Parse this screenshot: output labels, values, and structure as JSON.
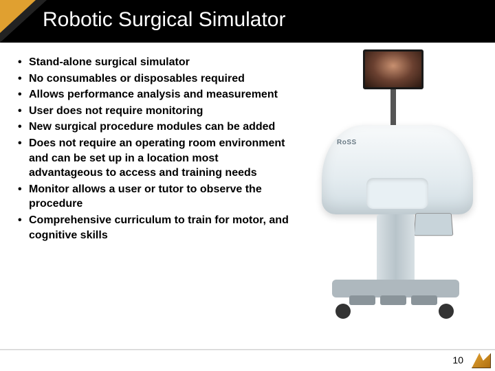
{
  "header": {
    "title": "Robotic Surgical Simulator",
    "accent_color": "#e0a030",
    "bg_color": "#000000",
    "text_color": "#ffffff"
  },
  "bullets": [
    "Stand-alone surgical simulator",
    "No consumables or disposables required",
    "Allows performance analysis and measurement",
    "User does not require monitoring",
    "New surgical procedure modules can be added",
    "Does not require an operating room environment and can be set up in a location most advantageous to access and training needs",
    "Monitor allows a user or tutor to observe the procedure",
    "Comprehensive curriculum to train for motor, and cognitive skills"
  ],
  "device": {
    "brand_label": "RoSS",
    "console_color": "#e8f0f4",
    "cart_color": "#b8c4ca"
  },
  "page_number": "10"
}
